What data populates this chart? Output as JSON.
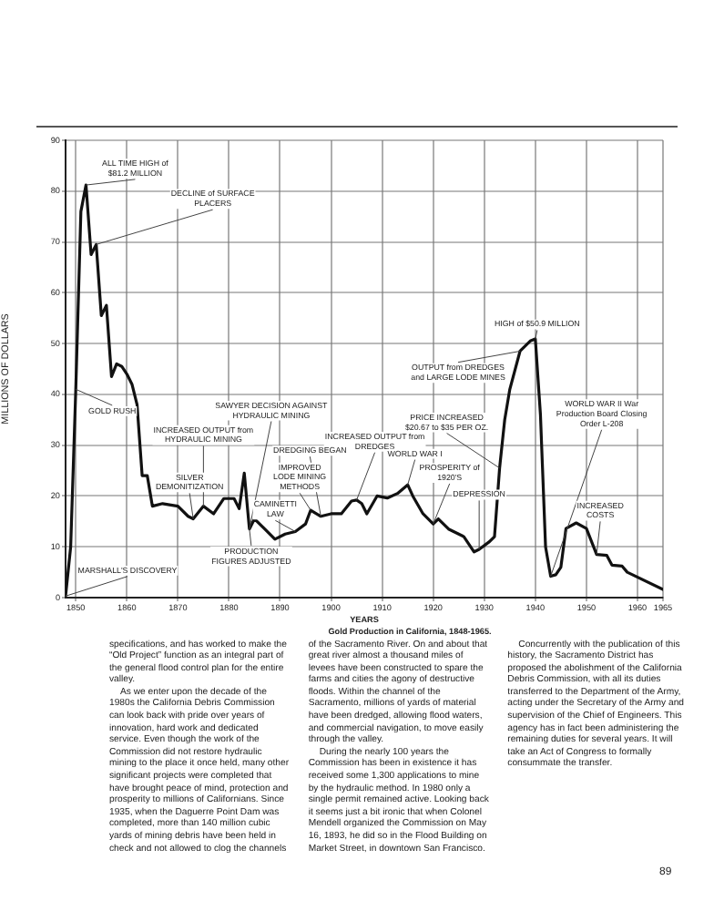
{
  "chart_data": {
    "type": "line",
    "xlabel": "YEARS",
    "ylabel": "MILLIONS OF DOLLARS",
    "x": [
      1848,
      1849,
      1850,
      1851,
      1852,
      1853,
      1854,
      1855,
      1856,
      1857,
      1858,
      1859,
      1860,
      1861,
      1862,
      1863,
      1864,
      1865,
      1867,
      1870,
      1872,
      1873,
      1875,
      1877,
      1879,
      1881,
      1882,
      1883,
      1884,
      1885,
      1887,
      1889,
      1891,
      1893,
      1895,
      1896,
      1898,
      1900,
      1902,
      1904,
      1905,
      1906,
      1907,
      1909,
      1911,
      1913,
      1915,
      1916,
      1918,
      1920,
      1921,
      1923,
      1926,
      1928,
      1929,
      1931,
      1932,
      1933,
      1934,
      1935,
      1937,
      1939,
      1940,
      1941,
      1942,
      1943,
      1944,
      1945,
      1946,
      1948,
      1950,
      1952,
      1954,
      1955,
      1957,
      1958,
      1965
    ],
    "values": [
      0.3,
      10,
      41,
      76,
      81.2,
      67.5,
      69.5,
      55.5,
      57.5,
      43.5,
      46,
      45.5,
      44,
      42,
      38,
      24,
      24,
      18,
      18.5,
      18,
      16,
      15.5,
      18,
      16.5,
      19.5,
      19.5,
      17.5,
      24.5,
      13.5,
      15.5,
      13.5,
      11.5,
      12.5,
      13,
      14.5,
      17.2,
      16,
      16.5,
      16.5,
      19,
      19.2,
      18.5,
      16.5,
      20,
      19.6,
      20.5,
      22.2,
      20,
      16.5,
      14.5,
      15.5,
      13.5,
      12,
      9,
      9.5,
      11,
      12,
      25.5,
      35,
      41,
      48.5,
      50.5,
      50.9,
      36,
      10,
      4.2,
      4.5,
      6,
      13.6,
      14.7,
      13.6,
      8.5,
      8.3,
      6.4,
      6.2,
      5,
      1.6
    ],
    "color": "#111111",
    "marker": "none",
    "line_style": "solid",
    "grid": true,
    "legend": false,
    "xlim": [
      1848,
      1965
    ],
    "xticks": [
      1850,
      1860,
      1870,
      1880,
      1890,
      1900,
      1910,
      1920,
      1930,
      1940,
      1950,
      1960,
      1965
    ],
    "ylim": [
      0,
      90
    ],
    "yticks": [
      0,
      10,
      20,
      30,
      40,
      50,
      60,
      70,
      80,
      90
    ],
    "annotations": [
      {
        "text": "ALL TIME HIGH of $81.2 MILLION",
        "x": 1852,
        "y": 81.2
      },
      {
        "text": "DECLINE of SURFACE PLACERS",
        "x": 1854,
        "y": 69.5
      },
      {
        "text": "GOLD RUSH",
        "x": 1850,
        "y": 41
      },
      {
        "text": "MARSHALL'S DISCOVERY",
        "x": 1848,
        "y": 0.3
      },
      {
        "text": "SAWYER DECISION AGAINST HYDRAULIC MINING",
        "x": 1884,
        "y": 13.5
      },
      {
        "text": "INCREASED OUTPUT from HYDRAULIC MINING",
        "x": 1875,
        "y": 18
      },
      {
        "text": "SILVER DEMONITIZATION",
        "x": 1873,
        "y": 15.5
      },
      {
        "text": "PRODUCTION FIGURES ADJUSTED",
        "x": 1884,
        "y": 13.5
      },
      {
        "text": "INCREASED OUTPUT from DREDGES",
        "x": 1905,
        "y": 19.2
      },
      {
        "text": "DREDGING BEGAN",
        "x": 1898,
        "y": 16
      },
      {
        "text": "IMPROVED LODE MINING METHODS",
        "x": 1896,
        "y": 17.2
      },
      {
        "text": "CAMINETTI LAW",
        "x": 1893,
        "y": 13
      },
      {
        "text": "WORLD WAR I",
        "x": 1915,
        "y": 22.2
      },
      {
        "text": "PROSPERITY of 1920'S",
        "x": 1920,
        "y": 14.5
      },
      {
        "text": "DEPRESSION",
        "x": 1929,
        "y": 9.5
      },
      {
        "text": "PRICE INCREASED $20.67 to $35 PER OZ.",
        "x": 1933,
        "y": 25.5
      },
      {
        "text": "OUTPUT from DREDGES and LARGE LODE MINES",
        "x": 1937,
        "y": 48.5
      },
      {
        "text": "HIGH of $50.9 MILLION",
        "x": 1940,
        "y": 50.9
      },
      {
        "text": "WORLD WAR II War Production Board Closing Order L-208",
        "x": 1943,
        "y": 4.2
      },
      {
        "text": "INCREASED COSTS",
        "x": 1952,
        "y": 8.5
      },
      "Gold Production in California, 1848-1965.",
      "specifications, and has worked to make the “Old Project” function as an integral part of the general flood control plan for the entire valley.",
      "As we enter upon the decade of the 1980s the California Debris Commission can look back with pride over years of innovation, hard work and dedicated service. Even though the work of the Commission did not restore hydraulic mining to the place it once held, many other significant projects were completed that have brought peace of mind, protection and prosperity to millions of Californians. Since 1935, when the Daguerre Point Dam was completed, more than 140 million cubic yards of mining debris have been held in check and not allowed to clog the channels of the Sacramento River. On and about that great river almost a thousand miles of levees have been constructed to spare the farms and cities the agony of destructive floods. Within the channel of the Sacramento, millions of yards of material have been dredged, allowing flood waters, and commercial navigation, to move easily through the valley.",
      "During the nearly 100 years the Commission has been in existence it has received some 1,300 applications to mine by the hydraulic method. In 1980 only a single permit remained active. Looking back it seems just a bit ironic that when Colonel Mendell organized the Commission on May 16, 1893, he did so in the Flood Building on Market Street, in downtown San Francisco.",
      "Concurrently with the publication of this history, the Sacramento District has proposed the abolishment of the California Debris Commission, with all its duties transferred to the Department of the Army, acting under the Secretary of the Army and supervision of the Chief of Engineers. This agency has in fact been administering the remaining duties for several years. It will take an Act of Congress to formally consummate the transfer.",
      "89"
    ]
  }
}
